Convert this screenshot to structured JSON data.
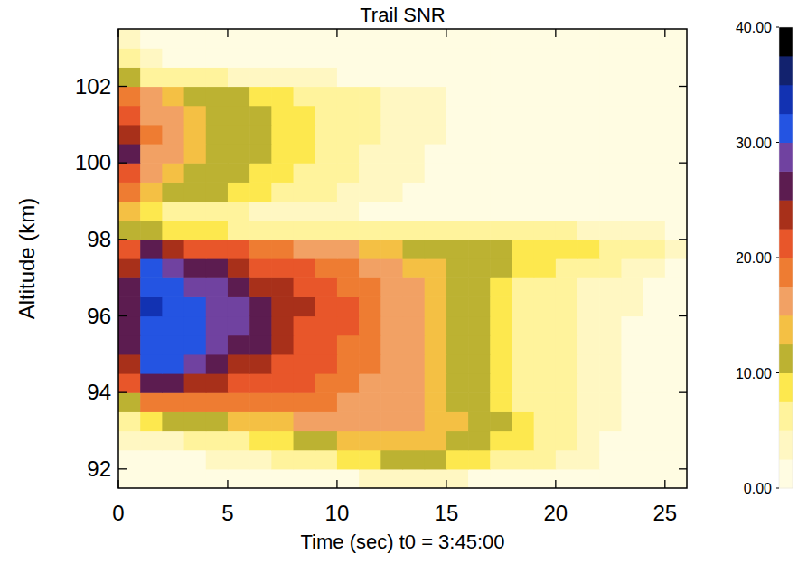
{
  "chart_data": {
    "type": "heatmap",
    "title": "Trail SNR",
    "x_label": "Time (sec) t0 = 3:45:00",
    "y_label": "Altitude (km)",
    "x_edges": [
      0,
      1,
      2,
      3,
      4,
      5,
      6,
      7,
      8,
      9,
      10,
      11,
      12,
      13,
      14,
      15,
      16,
      17,
      18,
      19,
      20,
      21,
      22,
      23,
      24,
      25,
      26
    ],
    "y_edges": [
      91.5,
      92,
      92.5,
      93,
      93.5,
      94,
      94.5,
      95,
      95.5,
      96,
      96.5,
      97,
      97.5,
      98,
      98.5,
      99,
      99.5,
      100,
      100.5,
      101,
      101.5,
      102,
      102.5,
      103,
      103.5
    ],
    "cells": [
      [
        1,
        1,
        1,
        1,
        1,
        1,
        1,
        1,
        2,
        2,
        2,
        3,
        3,
        3,
        3,
        3,
        2,
        2,
        2,
        1,
        1,
        1,
        1,
        1,
        0,
        0
      ],
      [
        2,
        2,
        2,
        2,
        3,
        3,
        4,
        5,
        6,
        7,
        8,
        9,
        10,
        10,
        10,
        9,
        8,
        7,
        6,
        5,
        4,
        3,
        2,
        2,
        1,
        1
      ],
      [
        3,
        3,
        4,
        5,
        6,
        7,
        8,
        9,
        11,
        12,
        13,
        14,
        14,
        14,
        13,
        12,
        11,
        9,
        8,
        6,
        5,
        3,
        2,
        2,
        1,
        1
      ],
      [
        6,
        9,
        10,
        11,
        12,
        13,
        13,
        14,
        15,
        15,
        16,
        16,
        16,
        15,
        14,
        13,
        11,
        10,
        8,
        6,
        5,
        4,
        3,
        2,
        1,
        1
      ],
      [
        12,
        18,
        18,
        18,
        18,
        18,
        18,
        18,
        18,
        18,
        17,
        17,
        16,
        15,
        14,
        12,
        11,
        9,
        7,
        6,
        5,
        4,
        3,
        2,
        2,
        1
      ],
      [
        20,
        27,
        25,
        24,
        23,
        22,
        21,
        21,
        20,
        19,
        18,
        17,
        16,
        15,
        14,
        12,
        11,
        9,
        7,
        6,
        5,
        4,
        3,
        2,
        2,
        1
      ],
      [
        24,
        31,
        30,
        28,
        26,
        24,
        23,
        22,
        21,
        20,
        19,
        18,
        16,
        15,
        14,
        12,
        10,
        9,
        7,
        6,
        5,
        4,
        3,
        2,
        2,
        1
      ],
      [
        25,
        32,
        31,
        30,
        28,
        27,
        25,
        23,
        22,
        21,
        19,
        18,
        17,
        15,
        14,
        12,
        10,
        9,
        7,
        6,
        5,
        4,
        3,
        2,
        2,
        1
      ],
      [
        26,
        32,
        31,
        30,
        29,
        28,
        26,
        24,
        22,
        21,
        20,
        18,
        17,
        15,
        14,
        12,
        10,
        9,
        7,
        6,
        5,
        4,
        3,
        2,
        2,
        1
      ],
      [
        27,
        33,
        31,
        30,
        29,
        28,
        27,
        24,
        23,
        21,
        20,
        18,
        17,
        15,
        14,
        12,
        10,
        9,
        7,
        6,
        5,
        4,
        3,
        3,
        2,
        1
      ],
      [
        26,
        32,
        30,
        29,
        28,
        26,
        24,
        23,
        22,
        21,
        19,
        18,
        16,
        15,
        13,
        12,
        10,
        9,
        7,
        6,
        5,
        4,
        3,
        3,
        2,
        1
      ],
      [
        24,
        30,
        28,
        27,
        25,
        24,
        22,
        21,
        20,
        19,
        18,
        17,
        16,
        14,
        13,
        12,
        11,
        10,
        9,
        8,
        7,
        6,
        5,
        4,
        3,
        2
      ],
      [
        20,
        25,
        24,
        22,
        21,
        20,
        19,
        18,
        17,
        16,
        15,
        14,
        13,
        12,
        12,
        11,
        10,
        10,
        9,
        9,
        8,
        8,
        7,
        6,
        5,
        4
      ],
      [
        12,
        10,
        9,
        8,
        8,
        7,
        7,
        7,
        7,
        7,
        7,
        7,
        7,
        6,
        6,
        6,
        6,
        5,
        5,
        5,
        5,
        4,
        4,
        4,
        3,
        2
      ],
      [
        14,
        9,
        7,
        6,
        5,
        5,
        4,
        4,
        3,
        3,
        3,
        2,
        2,
        2,
        1,
        1,
        1,
        1,
        1,
        1,
        1,
        1,
        1,
        0,
        0,
        0
      ],
      [
        18,
        14,
        12,
        11,
        10,
        9,
        8,
        7,
        6,
        5,
        4,
        3,
        3,
        2,
        2,
        1,
        1,
        1,
        1,
        1,
        1,
        0,
        0,
        0,
        0,
        0
      ],
      [
        22,
        16,
        14,
        12,
        11,
        10,
        9,
        8,
        7,
        6,
        5,
        4,
        3,
        3,
        2,
        2,
        1,
        1,
        1,
        1,
        0,
        0,
        0,
        0,
        0,
        0
      ],
      [
        26,
        17,
        15,
        13,
        12,
        11,
        10,
        9,
        8,
        7,
        5,
        4,
        4,
        3,
        2,
        2,
        1,
        1,
        1,
        1,
        0,
        0,
        0,
        0,
        0,
        0
      ],
      [
        24,
        18,
        15,
        14,
        12,
        11,
        10,
        9,
        8,
        7,
        6,
        5,
        4,
        3,
        3,
        2,
        2,
        1,
        1,
        1,
        0,
        0,
        0,
        0,
        0,
        0
      ],
      [
        22,
        17,
        15,
        13,
        12,
        11,
        10,
        9,
        8,
        7,
        6,
        5,
        4,
        3,
        3,
        2,
        2,
        1,
        1,
        1,
        0,
        0,
        0,
        0,
        0,
        0
      ],
      [
        18,
        15,
        13,
        12,
        11,
        10,
        9,
        8,
        7,
        6,
        6,
        5,
        4,
        3,
        3,
        2,
        2,
        1,
        1,
        1,
        0,
        0,
        0,
        0,
        0,
        0
      ],
      [
        10,
        7,
        6,
        5,
        5,
        4,
        4,
        3,
        3,
        3,
        2,
        2,
        2,
        1,
        1,
        1,
        1,
        1,
        0,
        0,
        0,
        0,
        0,
        0,
        0,
        0
      ],
      [
        5,
        3,
        2,
        2,
        2,
        2,
        1,
        1,
        1,
        1,
        1,
        1,
        1,
        1,
        0,
        0,
        0,
        0,
        0,
        0,
        0,
        0,
        0,
        0,
        0,
        0
      ],
      [
        3,
        2,
        1,
        1,
        1,
        1,
        1,
        1,
        1,
        1,
        0,
        0,
        0,
        0,
        0,
        0,
        0,
        0,
        0,
        0,
        0,
        0,
        0,
        0,
        0,
        0
      ]
    ],
    "xlim": [
      0,
      26
    ],
    "ylim": [
      91.5,
      103.5
    ],
    "xticks": [
      0,
      5,
      10,
      15,
      20,
      25
    ],
    "yticks": [
      92,
      94,
      96,
      98,
      100,
      102
    ],
    "colorbar_range": [
      0,
      40
    ],
    "colorbar_ticks": [
      {
        "value": 0,
        "label": "0.00"
      },
      {
        "value": 10,
        "label": "10.00"
      },
      {
        "value": 20,
        "label": "20.00"
      },
      {
        "value": 30,
        "label": "30.00"
      },
      {
        "value": 40,
        "label": "40.00"
      }
    ]
  }
}
